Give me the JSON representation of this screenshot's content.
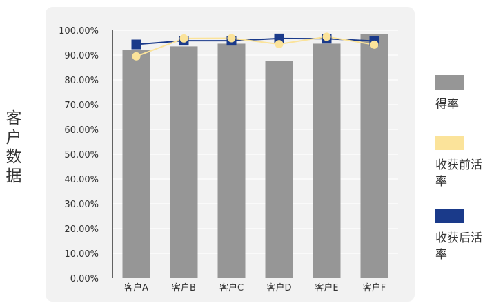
{
  "chart_data": {
    "type": "bar",
    "categories": [
      "客户A",
      "客户B",
      "客户C",
      "客户D",
      "客户E",
      "客户F"
    ],
    "series": [
      {
        "name": "得率",
        "type": "bar",
        "color": "#969696",
        "values": [
          92.0,
          93.5,
          94.6,
          87.6,
          94.6,
          98.6
        ]
      },
      {
        "name": "收获前活率",
        "type": "line",
        "color": "#fbe39a",
        "marker": "circle",
        "values": [
          89.5,
          96.7,
          96.8,
          94.4,
          97.4,
          94.2
        ]
      },
      {
        "name": "收获后活率",
        "type": "line",
        "color": "#1a3a8a",
        "marker": "square",
        "values": [
          94.3,
          95.8,
          95.8,
          96.7,
          96.6,
          95.7
        ]
      }
    ],
    "xlabel": "",
    "ylabel": "客户数据",
    "ylim": [
      0,
      100
    ],
    "yticks": [
      "0.00%",
      "10.00%",
      "20.00%",
      "30.00%",
      "40.00%",
      "50.00%",
      "60.00%",
      "70.00%",
      "80.00%",
      "90.00%",
      "100.00%"
    ],
    "grid": true,
    "legend_position": "right"
  }
}
